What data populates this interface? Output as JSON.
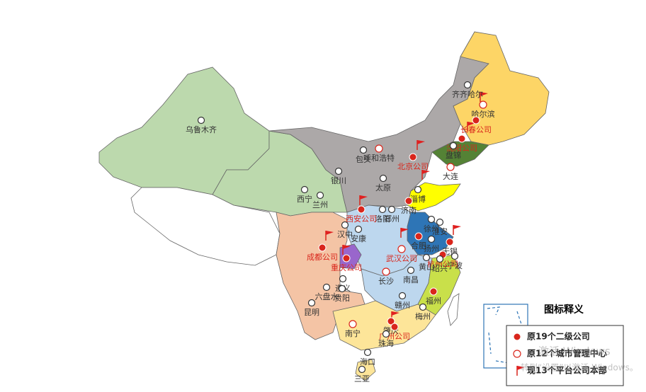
{
  "legend": {
    "title": "图标释义",
    "items": [
      "原19个二级公司",
      "原12个城市管理中心",
      "现13个平台公司本部"
    ]
  },
  "cities": [
    {
      "label": "齐齐哈尔",
      "color": "#333333"
    },
    {
      "label": "哈尔滨",
      "color": "#333333"
    },
    {
      "label": "长春公司",
      "color": "#d9261c"
    },
    {
      "label": "沈阳公司",
      "color": "#d9261c"
    },
    {
      "label": "盘锦",
      "color": "#333333"
    },
    {
      "label": "大连",
      "color": "#333333"
    },
    {
      "label": "乌鲁木齐",
      "color": "#333333"
    },
    {
      "label": "包头",
      "color": "#333333"
    },
    {
      "label": "呼和浩特",
      "color": "#333333"
    },
    {
      "label": "北京公司",
      "color": "#d9261c"
    },
    {
      "label": "银川",
      "color": "#333333"
    },
    {
      "label": "太原",
      "color": "#333333"
    },
    {
      "label": "西宁",
      "color": "#333333"
    },
    {
      "label": "兰州",
      "color": "#333333"
    },
    {
      "label": "淄博",
      "color": "#333333"
    },
    {
      "label": "济南",
      "color": "#333333"
    },
    {
      "label": "郑州",
      "color": "#333333"
    },
    {
      "label": "洛阳",
      "color": "#333333"
    },
    {
      "label": "西安公司",
      "color": "#d9261c"
    },
    {
      "label": "徐州",
      "color": "#333333"
    },
    {
      "label": "淮安",
      "color": "#333333"
    },
    {
      "label": "汉中",
      "color": "#333333"
    },
    {
      "label": "安康",
      "color": "#333333"
    },
    {
      "label": "合肥",
      "color": "#333333"
    },
    {
      "label": "扬州",
      "color": "#333333"
    },
    {
      "label": "无锡",
      "color": "#333333"
    },
    {
      "label": "杭州公司",
      "color": "#d9261c"
    },
    {
      "label": "成都公司",
      "color": "#d9261c"
    },
    {
      "label": "重庆公司",
      "color": "#d9261c"
    },
    {
      "label": "武汉公司",
      "color": "#d9261c"
    },
    {
      "label": "黄山",
      "color": "#333333"
    },
    {
      "label": "绍兴",
      "color": "#333333"
    },
    {
      "label": "宁波",
      "color": "#333333"
    },
    {
      "label": "南昌",
      "color": "#333333"
    },
    {
      "label": "长沙",
      "color": "#333333"
    },
    {
      "label": "遵义",
      "color": "#333333"
    },
    {
      "label": "六盘水",
      "color": "#333333"
    },
    {
      "label": "贵阳",
      "color": "#333333"
    },
    {
      "label": "昆明",
      "color": "#333333"
    },
    {
      "label": "赣州",
      "color": "#333333"
    },
    {
      "label": "福州",
      "color": "#333333"
    },
    {
      "label": "南宁",
      "color": "#333333"
    },
    {
      "label": "梅州",
      "color": "#333333"
    },
    {
      "label": "肇庆",
      "color": "#333333"
    },
    {
      "label": "广州公司",
      "color": "#d9261c"
    },
    {
      "label": "珠海",
      "color": "#333333"
    },
    {
      "label": "海口",
      "color": "#333333"
    },
    {
      "label": "三亚",
      "color": "#333333"
    }
  ],
  "watermark": [
    "激活 Windows",
    "转到“设置”以激活 Windows。"
  ]
}
